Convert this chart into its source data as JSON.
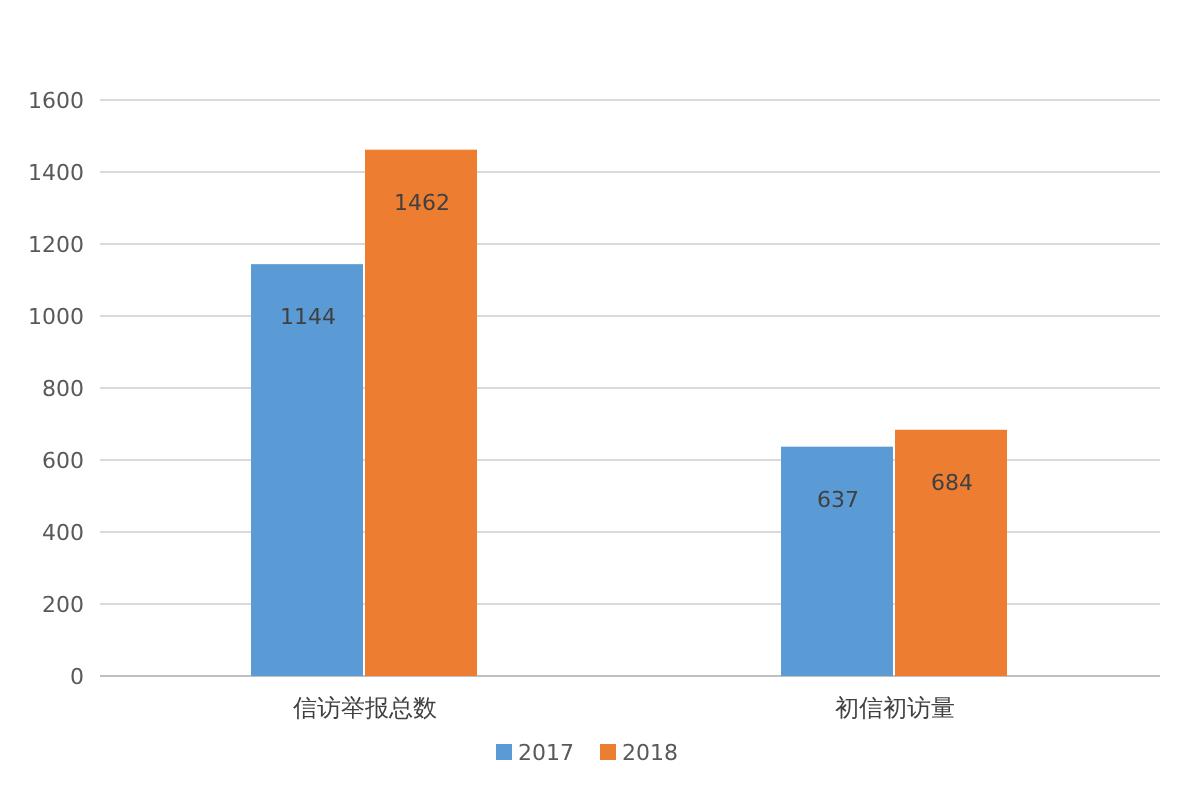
{
  "chart_data": {
    "type": "bar",
    "categories": [
      "信访举报总数",
      "初信初访量"
    ],
    "series": [
      {
        "name": "2017",
        "color": "#5b9bd5",
        "values": [
          1144,
          637
        ]
      },
      {
        "name": "2018",
        "color": "#ed7d31",
        "values": [
          1462,
          684
        ]
      }
    ],
    "ylim": [
      0,
      1600
    ],
    "yticks": [
      0,
      200,
      400,
      600,
      800,
      1000,
      1200,
      1400,
      1600
    ],
    "grid": "y",
    "data_labels": true,
    "legend": "bottom"
  }
}
